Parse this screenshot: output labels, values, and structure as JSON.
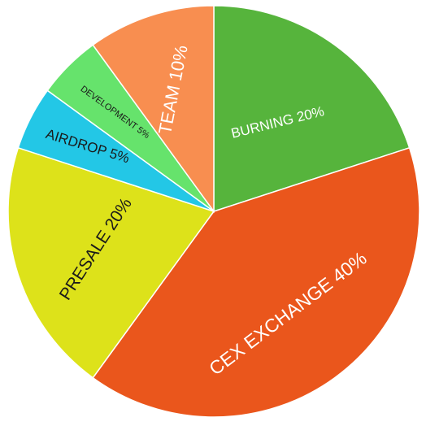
{
  "chart_data": {
    "type": "pie",
    "title": "",
    "start_angle_deg": 0,
    "direction": "clockwise",
    "slices": [
      {
        "label": "BURNING 20%",
        "value": 20,
        "color": "#56b43c",
        "text_color": "#ffffff"
      },
      {
        "label": "CEX EXCHANGE 40%",
        "value": 40,
        "color": "#ea561c",
        "text_color": "#ffffff"
      },
      {
        "label": "PRESALE 20%",
        "value": 20,
        "color": "#dde21a",
        "text_color": "#1a1a1a"
      },
      {
        "label": "AIRDROP 5%",
        "value": 5,
        "color": "#23c7e6",
        "text_color": "#1a1a1a"
      },
      {
        "label": "DEVELOPMENT 5%",
        "value": 5,
        "color": "#66e36c",
        "text_color": "#1a1a1a"
      },
      {
        "label": "TEAM 10%",
        "value": 10,
        "color": "#f88e50",
        "text_color": "#ffffff"
      }
    ]
  }
}
